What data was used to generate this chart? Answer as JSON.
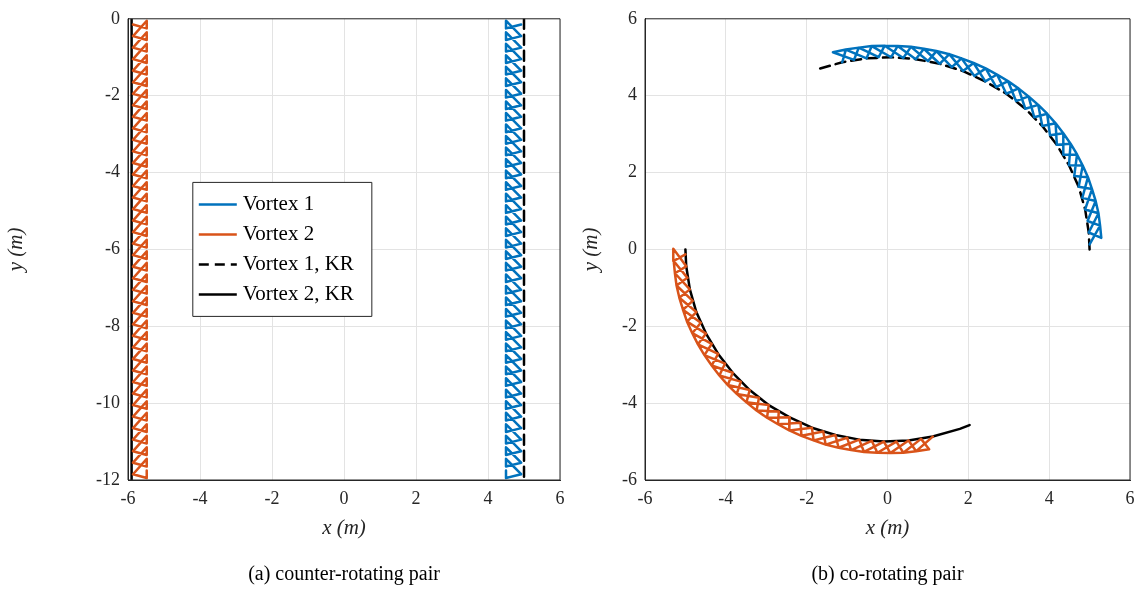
{
  "chart_data": [
    {
      "type": "line",
      "xlabel": "x (m)",
      "ylabel": "y (m)",
      "xlim": [
        -6,
        6
      ],
      "ylim": [
        -12,
        0
      ],
      "xticks": [
        -6,
        -4,
        -2,
        0,
        2,
        4,
        6
      ],
      "yticks": [
        -12,
        -10,
        -8,
        -6,
        -4,
        -2,
        0
      ],
      "grid": true,
      "legend": "left",
      "marker": "none",
      "annotations": [
        "(a) counter-rotating pair"
      ],
      "series": [
        {
          "name": "Vortex 1",
          "color": "#0072bd",
          "line_style": "solid",
          "x": [
            4.92,
            4.5,
            4.5,
            4.92,
            4.5,
            4.5,
            4.92,
            4.5,
            4.5,
            4.92,
            4.5,
            4.5,
            4.92,
            4.5,
            4.5,
            4.92,
            4.5,
            4.5,
            4.92,
            4.5,
            4.5,
            4.92,
            4.5,
            4.5,
            4.92,
            4.5,
            4.5,
            4.92,
            4.5,
            4.5,
            4.92,
            4.5,
            4.5,
            4.92,
            4.5,
            4.5,
            4.92,
            4.5,
            4.5,
            4.92,
            4.5,
            4.5,
            4.92,
            4.5,
            4.5,
            4.92,
            4.5,
            4.5,
            4.92,
            4.5,
            4.5,
            4.92,
            4.5,
            4.5,
            4.92,
            4.5,
            4.5,
            4.92,
            4.5,
            4.5,
            4.92,
            4.5,
            4.5,
            4.92,
            4.5,
            4.5,
            4.92,
            4.5,
            4.5,
            4.92,
            4.5,
            4.5,
            4.92,
            4.5,
            4.5,
            4.92,
            4.5,
            4.5,
            4.92,
            4.5,
            4.5,
            4.92,
            4.5,
            4.5,
            4.92,
            4.5,
            4.5,
            4.92,
            4.5,
            4.5,
            4.92,
            4.5,
            4.5,
            4.92,
            4.5,
            4.5,
            4.92,
            4.5,
            4.5,
            4.92,
            4.5,
            4.5,
            4.92,
            4.5,
            4.5,
            4.92,
            4.5,
            4.5,
            4.92,
            4.5,
            4.5,
            4.92,
            4.5,
            4.5,
            4.92,
            4.5,
            4.5,
            4.92,
            4.5,
            4.5
          ],
          "values": [
            -0.15,
            -0.25,
            -0.05,
            -0.45,
            -0.55,
            -0.35,
            -0.75,
            -0.85,
            -0.65,
            -1.05,
            -1.15,
            -0.95,
            -1.35,
            -1.45,
            -1.25,
            -1.65,
            -1.75,
            -1.55,
            -1.95,
            -2.05,
            -1.85,
            -2.25,
            -2.35,
            -2.15,
            -2.55,
            -2.65,
            -2.45,
            -2.85,
            -2.95,
            -2.75,
            -3.15,
            -3.25,
            -3.05,
            -3.45,
            -3.55,
            -3.35,
            -3.75,
            -3.85,
            -3.65,
            -4.05,
            -4.15,
            -3.95,
            -4.35,
            -4.45,
            -4.25,
            -4.65,
            -4.75,
            -4.55,
            -4.95,
            -5.05,
            -4.85,
            -5.25,
            -5.35,
            -5.15,
            -5.55,
            -5.65,
            -5.45,
            -5.85,
            -5.95,
            -5.75,
            -6.15,
            -6.25,
            -6.05,
            -6.45,
            -6.55,
            -6.35,
            -6.75,
            -6.85,
            -6.65,
            -7.05,
            -7.15,
            -6.95,
            -7.35,
            -7.45,
            -7.25,
            -7.65,
            -7.75,
            -7.55,
            -7.95,
            -8.05,
            -7.85,
            -8.25,
            -8.35,
            -8.15,
            -8.55,
            -8.65,
            -8.45,
            -8.85,
            -8.95,
            -8.75,
            -9.15,
            -9.25,
            -9.05,
            -9.45,
            -9.55,
            -9.35,
            -9.75,
            -9.85,
            -9.65,
            -10.05,
            -10.15,
            -9.95,
            -10.35,
            -10.45,
            -10.25,
            -10.65,
            -10.75,
            -10.55,
            -10.95,
            -11.05,
            -10.85,
            -11.25,
            -11.35,
            -11.15,
            -11.55,
            -11.65,
            -11.45,
            -11.85,
            -11.95,
            -11.75
          ]
        },
        {
          "name": "Vortex 2",
          "color": "#d95319",
          "line_style": "solid",
          "x": [
            -5.86,
            -5.48,
            -5.48,
            -5.86,
            -5.48,
            -5.48,
            -5.86,
            -5.48,
            -5.48,
            -5.86,
            -5.48,
            -5.48,
            -5.86,
            -5.48,
            -5.48,
            -5.86,
            -5.48,
            -5.48,
            -5.86,
            -5.48,
            -5.48,
            -5.86,
            -5.48,
            -5.48,
            -5.86,
            -5.48,
            -5.48,
            -5.86,
            -5.48,
            -5.48,
            -5.86,
            -5.48,
            -5.48,
            -5.86,
            -5.48,
            -5.48,
            -5.86,
            -5.48,
            -5.48,
            -5.86,
            -5.48,
            -5.48,
            -5.86,
            -5.48,
            -5.48,
            -5.86,
            -5.48,
            -5.48,
            -5.86,
            -5.48,
            -5.48,
            -5.86,
            -5.48,
            -5.48,
            -5.86,
            -5.48,
            -5.48,
            -5.86,
            -5.48,
            -5.48,
            -5.86,
            -5.48,
            -5.48,
            -5.86,
            -5.48,
            -5.48,
            -5.86,
            -5.48,
            -5.48,
            -5.86,
            -5.48,
            -5.48,
            -5.86,
            -5.48,
            -5.48,
            -5.86,
            -5.48,
            -5.48,
            -5.86,
            -5.48,
            -5.48,
            -5.86,
            -5.48,
            -5.48,
            -5.86,
            -5.48,
            -5.48,
            -5.86,
            -5.48,
            -5.48,
            -5.86,
            -5.48,
            -5.48,
            -5.86,
            -5.48,
            -5.48,
            -5.86,
            -5.48,
            -5.48,
            -5.86,
            -5.48,
            -5.48,
            -5.86,
            -5.48,
            -5.48,
            -5.86,
            -5.48,
            -5.48,
            -5.86,
            -5.48,
            -5.48,
            -5.86,
            -5.48,
            -5.48,
            -5.86,
            -5.48,
            -5.48,
            -5.86,
            -5.48,
            -5.48
          ],
          "values": [
            -0.15,
            -0.25,
            -0.05,
            -0.45,
            -0.55,
            -0.35,
            -0.75,
            -0.85,
            -0.65,
            -1.05,
            -1.15,
            -0.95,
            -1.35,
            -1.45,
            -1.25,
            -1.65,
            -1.75,
            -1.55,
            -1.95,
            -2.05,
            -1.85,
            -2.25,
            -2.35,
            -2.15,
            -2.55,
            -2.65,
            -2.45,
            -2.85,
            -2.95,
            -2.75,
            -3.15,
            -3.25,
            -3.05,
            -3.45,
            -3.55,
            -3.35,
            -3.75,
            -3.85,
            -3.65,
            -4.05,
            -4.15,
            -3.95,
            -4.35,
            -4.45,
            -4.25,
            -4.65,
            -4.75,
            -4.55,
            -4.95,
            -5.05,
            -4.85,
            -5.25,
            -5.35,
            -5.15,
            -5.55,
            -5.65,
            -5.45,
            -5.85,
            -5.95,
            -5.75,
            -6.15,
            -6.25,
            -6.05,
            -6.45,
            -6.55,
            -6.35,
            -6.75,
            -6.85,
            -6.65,
            -7.05,
            -7.15,
            -6.95,
            -7.35,
            -7.45,
            -7.25,
            -7.65,
            -7.75,
            -7.55,
            -7.95,
            -8.05,
            -7.85,
            -8.25,
            -8.35,
            -8.15,
            -8.55,
            -8.65,
            -8.45,
            -8.85,
            -8.95,
            -8.75,
            -9.15,
            -9.25,
            -9.05,
            -9.45,
            -9.55,
            -9.35,
            -9.75,
            -9.85,
            -9.65,
            -10.05,
            -10.15,
            -9.95,
            -10.35,
            -10.45,
            -10.25,
            -10.65,
            -10.75,
            -10.55,
            -10.95,
            -11.05,
            -10.85,
            -11.25,
            -11.35,
            -11.15,
            -11.55,
            -11.65,
            -11.45,
            -11.85,
            -11.95,
            -11.75
          ]
        },
        {
          "name": "Vortex 1, KR",
          "color": "#000000",
          "line_style": "dashed",
          "x": [
            5,
            5
          ],
          "values": [
            0,
            -12
          ]
        },
        {
          "name": "Vortex 2, KR",
          "color": "#000000",
          "line_style": "solid",
          "x": [
            -5.9,
            -5.9
          ],
          "values": [
            0,
            -12
          ]
        }
      ]
    },
    {
      "type": "line",
      "xlabel": "x (m)",
      "ylabel": "y (m)",
      "xlim": [
        -6,
        6
      ],
      "ylim": [
        -6,
        6
      ],
      "xticks": [
        -6,
        -4,
        -2,
        0,
        2,
        4,
        6
      ],
      "yticks": [
        -6,
        -4,
        -2,
        0,
        2,
        4,
        6
      ],
      "grid": true,
      "marker": "none",
      "annotations": [
        "(b) co-rotating pair"
      ],
      "series": [
        {
          "color": "#0072bd",
          "line_style": "solid",
          "x": [
            -1.12,
            -1.03,
            -1.35,
            -0.83,
            -0.71,
            -1.03,
            -0.52,
            -0.39,
            -0.71,
            -0.22,
            -0.07,
            -0.39,
            0.09,
            0.25,
            -0.07,
            0.39,
            0.58,
            0.25,
            0.7,
            0.9,
            0.58,
            1.0,
            1.21,
            0.9,
            1.29,
            1.53,
            1.21,
            1.59,
            1.83,
            1.53,
            1.87,
            2.13,
            1.83,
            2.15,
            2.43,
            2.13,
            2.42,
            2.71,
            2.43,
            2.69,
            2.98,
            2.71,
            2.94,
            3.24,
            2.98,
            3.18,
            3.49,
            3.24,
            3.41,
            3.73,
            3.49,
            3.63,
            3.95,
            3.73,
            3.83,
            4.16,
            3.95,
            4.02,
            4.35,
            4.16,
            4.19,
            4.53,
            4.35,
            4.35,
            4.69,
            4.53,
            4.49,
            4.83,
            4.69,
            4.62,
            4.96,
            4.83,
            4.73,
            5.06,
            4.96,
            4.82,
            5.15,
            5.06,
            4.89,
            5.22,
            5.15,
            4.95,
            5.26,
            5.22,
            4.98,
            5.29,
            5.26,
            5.0
          ],
          "values": [
            4.87,
            5.2,
            5.13,
            4.93,
            5.25,
            5.2,
            4.97,
            5.29,
            5.25,
            5.0,
            5.3,
            5.29,
            5.0,
            5.29,
            5.3,
            4.98,
            5.27,
            5.29,
            4.95,
            5.22,
            5.27,
            4.9,
            5.16,
            5.22,
            4.83,
            5.08,
            5.16,
            4.74,
            4.97,
            5.08,
            4.64,
            4.85,
            4.97,
            4.51,
            4.71,
            4.85,
            4.37,
            4.55,
            4.71,
            4.22,
            4.38,
            4.55,
            4.05,
            4.19,
            4.38,
            3.86,
            3.98,
            4.19,
            3.66,
            3.76,
            3.98,
            3.44,
            3.53,
            3.76,
            3.21,
            3.28,
            3.53,
            2.97,
            3.02,
            3.28,
            2.72,
            2.75,
            3.02,
            2.46,
            2.47,
            2.75,
            2.19,
            2.18,
            2.47,
            1.91,
            1.88,
            2.18,
            1.63,
            1.57,
            1.88,
            1.34,
            1.26,
            1.57,
            1.04,
            0.94,
            1.26,
            0.74,
            0.62,
            0.94,
            0.44,
            0.3,
            0.62,
            0.13
          ]
        },
        {
          "color": "#d95319",
          "line_style": "solid",
          "x": [
            -5.0,
            -5.29,
            -5.3,
            -4.98,
            -5.26,
            -5.29,
            -4.95,
            -5.22,
            -5.26,
            -4.89,
            -5.15,
            -5.22,
            -4.82,
            -5.06,
            -5.15,
            -4.73,
            -4.96,
            -5.06,
            -4.62,
            -4.83,
            -4.96,
            -4.49,
            -4.69,
            -4.83,
            -4.35,
            -4.53,
            -4.69,
            -4.19,
            -4.35,
            -4.53,
            -4.02,
            -4.16,
            -4.35,
            -3.83,
            -3.95,
            -4.16,
            -3.63,
            -3.73,
            -3.95,
            -3.41,
            -3.49,
            -3.73,
            -3.18,
            -3.24,
            -3.49,
            -2.94,
            -2.98,
            -3.24,
            -2.69,
            -2.71,
            -2.98,
            -2.42,
            -2.43,
            -2.71,
            -2.15,
            -2.13,
            -2.43,
            -1.87,
            -1.83,
            -2.13,
            -1.59,
            -1.53,
            -1.83,
            -1.29,
            -1.21,
            -1.53,
            -1.0,
            -0.9,
            -1.21,
            -0.7,
            -0.58,
            -0.9,
            -0.39,
            -0.25,
            -0.58,
            -0.09,
            0.07,
            -0.25,
            0.22,
            0.39,
            0.07,
            0.52,
            0.71,
            0.39,
            0.83,
            1.03,
            0.71,
            1.12
          ],
          "values": [
            -0.13,
            -0.3,
            0.02,
            -0.44,
            -0.62,
            -0.3,
            -0.74,
            -0.94,
            -0.62,
            -1.04,
            -1.26,
            -0.94,
            -1.34,
            -1.57,
            -1.26,
            -1.63,
            -1.88,
            -1.57,
            -1.91,
            -2.18,
            -1.88,
            -2.19,
            -2.47,
            -2.18,
            -2.46,
            -2.75,
            -2.47,
            -2.72,
            -3.02,
            -2.75,
            -2.97,
            -3.28,
            -3.02,
            -3.21,
            -3.53,
            -3.28,
            -3.44,
            -3.76,
            -3.53,
            -3.66,
            -3.98,
            -3.76,
            -3.86,
            -4.19,
            -3.98,
            -4.05,
            -4.38,
            -4.19,
            -4.22,
            -4.55,
            -4.38,
            -4.37,
            -4.71,
            -4.55,
            -4.51,
            -4.85,
            -4.71,
            -4.64,
            -4.97,
            -4.85,
            -4.74,
            -5.08,
            -4.97,
            -4.83,
            -5.16,
            -5.08,
            -4.9,
            -5.22,
            -5.16,
            -4.95,
            -5.27,
            -5.22,
            -4.98,
            -5.29,
            -5.27,
            -5.0,
            -5.3,
            -5.29,
            -5.0,
            -5.29,
            -5.3,
            -4.97,
            -5.25,
            -5.29,
            -4.93,
            -5.2,
            -5.25,
            -4.87
          ]
        },
        {
          "color": "#000000",
          "line_style": "dashed",
          "x": [
            5,
            4.98,
            4.89,
            4.73,
            4.49,
            4.19,
            3.83,
            3.41,
            2.94,
            2.42,
            1.87,
            1.29,
            0.7,
            0.09,
            -0.52,
            -1.12,
            -1.79
          ],
          "values": [
            0,
            0.44,
            1.04,
            1.63,
            2.19,
            2.72,
            3.21,
            3.66,
            4.05,
            4.37,
            4.64,
            4.83,
            4.95,
            5.0,
            4.97,
            4.87,
            4.67
          ]
        },
        {
          "color": "#000000",
          "line_style": "solid",
          "x": [
            -5,
            -4.98,
            -4.89,
            -4.73,
            -4.49,
            -4.19,
            -3.83,
            -3.41,
            -2.94,
            -2.42,
            -1.87,
            -1.29,
            -0.7,
            -0.09,
            0.52,
            1.12,
            1.79,
            2.03
          ],
          "values": [
            0,
            -0.44,
            -1.04,
            -1.63,
            -2.19,
            -2.72,
            -3.21,
            -3.66,
            -4.05,
            -4.37,
            -4.64,
            -4.83,
            -4.95,
            -5.0,
            -4.97,
            -4.87,
            -4.67,
            -4.57
          ]
        }
      ]
    }
  ]
}
